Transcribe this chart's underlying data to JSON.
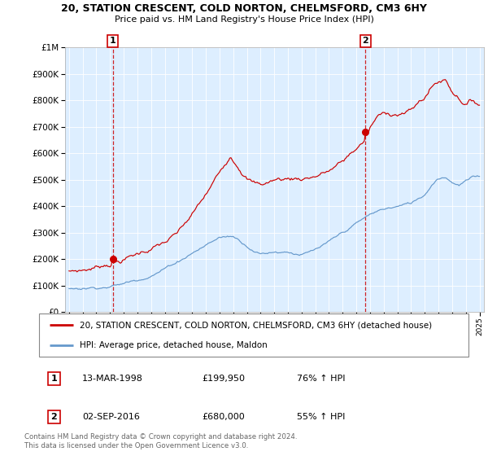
{
  "title": "20, STATION CRESCENT, COLD NORTON, CHELMSFORD, CM3 6HY",
  "subtitle": "Price paid vs. HM Land Registry's House Price Index (HPI)",
  "legend_line1": "20, STATION CRESCENT, COLD NORTON, CHELMSFORD, CM3 6HY (detached house)",
  "legend_line2": "HPI: Average price, detached house, Maldon",
  "sale1_label": "1",
  "sale1_date": "13-MAR-1998",
  "sale1_price": "£199,950",
  "sale1_hpi": "76% ↑ HPI",
  "sale2_label": "2",
  "sale2_date": "02-SEP-2016",
  "sale2_price": "£680,000",
  "sale2_hpi": "55% ↑ HPI",
  "copyright": "Contains HM Land Registry data © Crown copyright and database right 2024.\nThis data is licensed under the Open Government Licence v3.0.",
  "red_color": "#cc0000",
  "blue_color": "#6699cc",
  "plot_bg": "#ddeeff",
  "ylim_max": 1000000,
  "ylim_min": 0,
  "sale1_year": 1998.2,
  "sale1_value": 199950,
  "sale2_year": 2016.67,
  "sale2_value": 680000,
  "red_anchors_x": [
    1995.0,
    1996.0,
    1997.0,
    1997.5,
    1998.2,
    1999.0,
    2000.0,
    2001.0,
    2002.0,
    2003.0,
    2004.0,
    2005.0,
    2006.0,
    2006.8,
    2007.5,
    2008.0,
    2008.5,
    2009.0,
    2009.5,
    2010.0,
    2011.0,
    2012.0,
    2013.0,
    2014.0,
    2015.0,
    2015.5,
    2016.0,
    2016.67,
    2017.0,
    2017.5,
    2018.0,
    2018.5,
    2019.0,
    2020.0,
    2021.0,
    2021.5,
    2022.0,
    2022.5,
    2023.0,
    2023.5,
    2024.0,
    2024.5,
    2025.0
  ],
  "red_anchors_y": [
    155000,
    162000,
    175000,
    185000,
    199950,
    215000,
    235000,
    260000,
    280000,
    310000,
    370000,
    440000,
    520000,
    595000,
    560000,
    530000,
    510000,
    500000,
    510000,
    520000,
    525000,
    530000,
    545000,
    565000,
    595000,
    620000,
    645000,
    680000,
    720000,
    760000,
    770000,
    775000,
    780000,
    790000,
    840000,
    880000,
    900000,
    910000,
    870000,
    850000,
    830000,
    840000,
    830000
  ],
  "blue_anchors_x": [
    1995.0,
    1996.0,
    1997.0,
    1998.0,
    1999.0,
    2000.0,
    2001.0,
    2002.0,
    2003.0,
    2004.0,
    2005.0,
    2006.0,
    2007.0,
    2007.8,
    2008.5,
    2009.0,
    2009.5,
    2010.0,
    2011.0,
    2011.5,
    2012.0,
    2012.5,
    2013.0,
    2014.0,
    2015.0,
    2016.0,
    2017.0,
    2018.0,
    2019.0,
    2020.0,
    2021.0,
    2021.5,
    2022.0,
    2022.5,
    2023.0,
    2023.5,
    2024.0,
    2024.5,
    2025.0
  ],
  "blue_anchors_y": [
    88000,
    93000,
    100000,
    108000,
    118000,
    135000,
    158000,
    185000,
    215000,
    250000,
    280000,
    310000,
    315000,
    290000,
    270000,
    258000,
    262000,
    268000,
    272000,
    268000,
    265000,
    270000,
    278000,
    300000,
    330000,
    365000,
    395000,
    415000,
    425000,
    435000,
    470000,
    510000,
    540000,
    545000,
    530000,
    520000,
    535000,
    545000,
    548000
  ]
}
